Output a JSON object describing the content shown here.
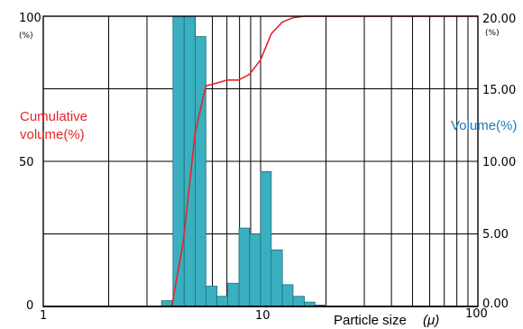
{
  "chart_data": {
    "type": "bar",
    "x_scale": "log",
    "xlim": [
      1,
      100
    ],
    "xticks": [
      "1",
      "10",
      "100"
    ],
    "xlabel": "Particle size",
    "xlabel_unit": "(μ)",
    "left_axis": {
      "label_line1": "Cumulative",
      "label_line2": "volume(%)",
      "unit": "(%)",
      "ylim": [
        0,
        100
      ],
      "ticks": [
        "0",
        "50",
        "100"
      ]
    },
    "right_axis": {
      "label": "Volume(%)",
      "unit": "(%)",
      "ylim": [
        0,
        20
      ],
      "ticks": [
        "0.00",
        "5.00",
        "10.00",
        "15.00",
        "20.00"
      ]
    },
    "grid": true,
    "series": [
      {
        "name": "Volume(%)",
        "type": "bar",
        "axis": "right",
        "color": "#3aafc0",
        "bins": [
          {
            "x0": 3.5,
            "x1": 3.95,
            "value": 0.4
          },
          {
            "x0": 3.95,
            "x1": 4.45,
            "value": 20.0
          },
          {
            "x0": 4.45,
            "x1": 5.0,
            "value": 20.0
          },
          {
            "x0": 5.0,
            "x1": 5.6,
            "value": 18.6
          },
          {
            "x0": 5.6,
            "x1": 6.3,
            "value": 1.4
          },
          {
            "x0": 6.3,
            "x1": 7.05,
            "value": 0.7
          },
          {
            "x0": 7.05,
            "x1": 7.95,
            "value": 1.6
          },
          {
            "x0": 7.95,
            "x1": 8.9,
            "value": 5.4
          },
          {
            "x0": 8.9,
            "x1": 10.0,
            "value": 5.0
          },
          {
            "x0": 10.0,
            "x1": 11.2,
            "value": 9.3
          },
          {
            "x0": 11.2,
            "x1": 12.6,
            "value": 3.9
          },
          {
            "x0": 12.6,
            "x1": 14.1,
            "value": 1.5
          },
          {
            "x0": 14.1,
            "x1": 15.9,
            "value": 0.7
          },
          {
            "x0": 15.9,
            "x1": 17.8,
            "value": 0.3
          },
          {
            "x0": 17.8,
            "x1": 20.0,
            "value": 0.1
          }
        ]
      },
      {
        "name": "Cumulative volume(%)",
        "type": "line",
        "axis": "left",
        "color": "#e8232a",
        "points": [
          {
            "x": 1.0,
            "y": 0
          },
          {
            "x": 3.9,
            "y": 0
          },
          {
            "x": 4.4,
            "y": 22
          },
          {
            "x": 5.0,
            "y": 60
          },
          {
            "x": 5.6,
            "y": 76
          },
          {
            "x": 6.3,
            "y": 77
          },
          {
            "x": 7.0,
            "y": 78
          },
          {
            "x": 7.9,
            "y": 78
          },
          {
            "x": 8.9,
            "y": 80
          },
          {
            "x": 10.0,
            "y": 85
          },
          {
            "x": 11.2,
            "y": 94
          },
          {
            "x": 12.6,
            "y": 98
          },
          {
            "x": 14.1,
            "y": 99.5
          },
          {
            "x": 15.9,
            "y": 100
          },
          {
            "x": 100.0,
            "y": 100
          }
        ]
      }
    ]
  }
}
